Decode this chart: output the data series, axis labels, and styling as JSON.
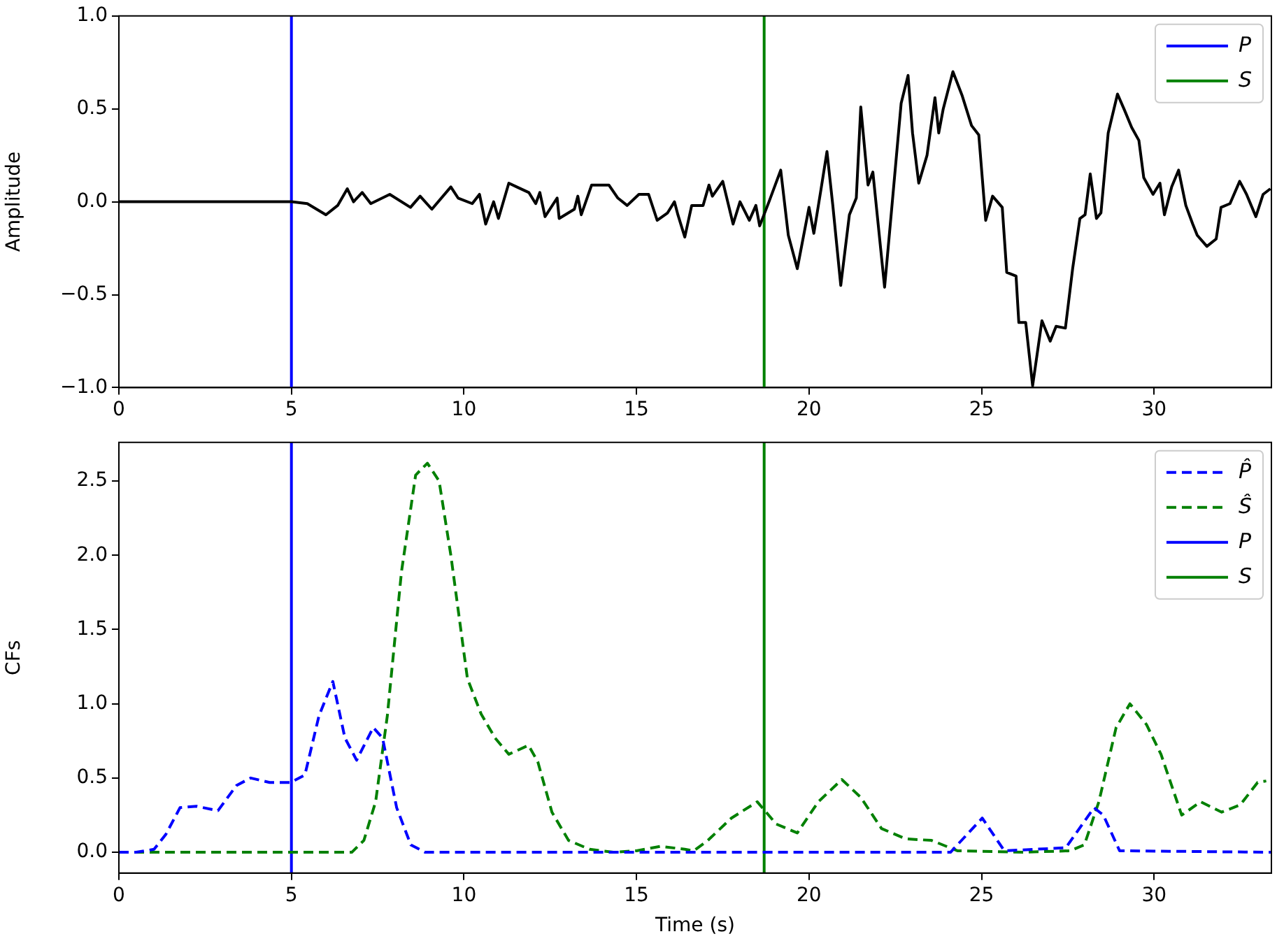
{
  "chart_data": [
    {
      "type": "line",
      "ylabel": "Amplitude",
      "xlim": [
        0,
        33.4
      ],
      "xticks": [
        0,
        5,
        10,
        15,
        20,
        25,
        30
      ],
      "ylim": [
        -1.0,
        1.0
      ],
      "yticks": [
        {
          "value": -1.0,
          "label": "−1.0"
        },
        {
          "value": -0.5,
          "label": "−0.5"
        },
        {
          "value": 0.0,
          "label": "0.0"
        },
        {
          "value": 0.5,
          "label": "0.5"
        },
        {
          "value": 1.0,
          "label": "1.0"
        }
      ],
      "grid": false,
      "legend": "top right",
      "marker": "none",
      "line_style": "solid",
      "series": [
        {
          "color": "#000000",
          "x": [
            0,
            2,
            4,
            5,
            5.46,
            6.0,
            6.34,
            6.62,
            6.8,
            7.05,
            7.3,
            7.85,
            8.45,
            8.73,
            9.07,
            9.62,
            9.83,
            10.24,
            10.45,
            10.63,
            10.86,
            11.0,
            11.3,
            11.53,
            11.88,
            12.08,
            12.2,
            12.35,
            12.7,
            12.76,
            13.2,
            13.3,
            13.4,
            13.7,
            14.2,
            14.46,
            14.73,
            15.07,
            15.35,
            15.6,
            15.9,
            16.1,
            16.2,
            16.4,
            16.6,
            16.93,
            17.1,
            17.2,
            17.5,
            17.8,
            18.0,
            18.27,
            18.46,
            18.57,
            18.84,
            19.18,
            19.4,
            19.66,
            20.0,
            20.14,
            20.35,
            20.52,
            20.69,
            20.92,
            21.17,
            21.37,
            21.5,
            21.71,
            21.85,
            22.19,
            22.39,
            22.67,
            22.87,
            23.0,
            23.18,
            23.42,
            23.65,
            23.76,
            23.89,
            24.17,
            24.44,
            24.71,
            24.92,
            25.12,
            25.32,
            25.6,
            25.73,
            26.0,
            26.08,
            26.28,
            26.48,
            26.75,
            26.99,
            27.16,
            27.43,
            27.64,
            27.85,
            28.0,
            28.15,
            28.33,
            28.46,
            28.67,
            28.94,
            29.15,
            29.35,
            29.56,
            29.7,
            29.97,
            30.17,
            30.3,
            30.51,
            30.71,
            30.92,
            31.12,
            31.25,
            31.53,
            31.8,
            31.94,
            32.2,
            32.48,
            32.68,
            32.95,
            33.16,
            33.37
          ],
          "name": null,
          "values": [
            0,
            0,
            0,
            0,
            -0.01,
            -0.07,
            -0.02,
            0.07,
            0.0,
            0.05,
            -0.01,
            0.04,
            -0.03,
            0.03,
            -0.04,
            0.08,
            0.02,
            -0.01,
            0.04,
            -0.12,
            0.0,
            -0.09,
            0.1,
            0.08,
            0.05,
            -0.01,
            0.05,
            -0.08,
            0.02,
            -0.09,
            -0.04,
            0.03,
            -0.07,
            0.09,
            0.09,
            0.02,
            -0.02,
            0.04,
            0.04,
            -0.1,
            -0.06,
            0.0,
            -0.07,
            -0.19,
            -0.02,
            -0.02,
            0.09,
            0.03,
            0.11,
            -0.12,
            0.0,
            -0.1,
            -0.02,
            -0.13,
            0.0,
            0.17,
            -0.18,
            -0.36,
            -0.03,
            -0.17,
            0.07,
            0.27,
            -0.02,
            -0.45,
            -0.07,
            0.02,
            0.51,
            0.09,
            0.16,
            -0.46,
            -0.05,
            0.53,
            0.68,
            0.37,
            0.1,
            0.25,
            0.56,
            0.37,
            0.5,
            0.7,
            0.57,
            0.41,
            0.36,
            -0.1,
            0.03,
            -0.03,
            -0.38,
            -0.4,
            -0.65,
            -0.65,
            -0.99,
            -0.64,
            -0.75,
            -0.67,
            -0.68,
            -0.36,
            -0.09,
            -0.07,
            0.15,
            -0.09,
            -0.06,
            0.37,
            0.58,
            0.49,
            0.4,
            0.33,
            0.13,
            0.04,
            0.1,
            -0.07,
            0.08,
            0.17,
            -0.02,
            -0.12,
            -0.18,
            -0.24,
            -0.2,
            -0.03,
            -0.01,
            0.11,
            0.04,
            -0.08,
            0.04,
            0.07
          ]
        },
        {
          "name": "P",
          "color": "#0000ff",
          "x": [
            5.0,
            5.0
          ],
          "values": [
            -1.0,
            1.0
          ]
        },
        {
          "name": "S",
          "color": "#008000",
          "x": [
            18.7,
            18.7
          ],
          "values": [
            -1.0,
            1.0
          ]
        }
      ]
    },
    {
      "type": "line",
      "xlabel": "Time (s)",
      "ylabel": "CFs",
      "xlim": [
        0,
        33.4
      ],
      "xticks": [
        0,
        5,
        10,
        15,
        20,
        25,
        30
      ],
      "ylim": [
        -0.14,
        2.76
      ],
      "yticks": [
        {
          "value": 0.0,
          "label": "0.0"
        },
        0.5,
        {
          "value": 1.0,
          "label": "1.0"
        },
        1.5,
        {
          "value": 2.0,
          "label": "2.0"
        },
        2.5
      ],
      "grid": false,
      "legend": "top right",
      "marker": "none",
      "line_style": "dashed",
      "series": [
        {
          "name": "P̂",
          "color": "#0000ff",
          "x": [
            0,
            0.5,
            1.02,
            1.36,
            1.77,
            2.25,
            2.87,
            3.41,
            3.82,
            4.37,
            4.98,
            5.39,
            5.8,
            6.2,
            6.55,
            6.89,
            7.37,
            7.64,
            8.05,
            8.46,
            8.87,
            12,
            16,
            20,
            24.1,
            25.02,
            25.66,
            27.44,
            28.26,
            28.53,
            29.0,
            33.4
          ],
          "values": [
            0,
            0,
            0.02,
            0.12,
            0.3,
            0.31,
            0.28,
            0.45,
            0.5,
            0.47,
            0.47,
            0.52,
            0.92,
            1.15,
            0.77,
            0.62,
            0.84,
            0.77,
            0.3,
            0.05,
            0,
            0,
            0,
            0,
            0,
            0.23,
            0.01,
            0.03,
            0.3,
            0.25,
            0.01,
            0
          ]
        },
        {
          "name": "Ŝ",
          "color": "#008000",
          "x": [
            0,
            3,
            6.75,
            7.1,
            7.44,
            7.78,
            8.19,
            8.6,
            8.94,
            9.28,
            9.62,
            10.1,
            10.5,
            10.9,
            11.3,
            11.87,
            12.14,
            12.55,
            13.03,
            13.64,
            14.33,
            15.0,
            15.7,
            16.4,
            16.66,
            17.07,
            17.75,
            18.5,
            19.05,
            19.66,
            20.27,
            20.95,
            21.5,
            22.1,
            22.8,
            23.55,
            24.3,
            26.2,
            27.57,
            27.98,
            28.4,
            28.9,
            29.3,
            29.78,
            30.2,
            30.8,
            31.35,
            31.96,
            32.5,
            33.0,
            33.25
          ],
          "values": [
            0,
            0,
            0,
            0.08,
            0.34,
            0.92,
            1.89,
            2.54,
            2.62,
            2.5,
            2.0,
            1.17,
            0.93,
            0.77,
            0.66,
            0.72,
            0.61,
            0.27,
            0.08,
            0.02,
            0,
            0.01,
            0.04,
            0.02,
            0.01,
            0.08,
            0.23,
            0.34,
            0.19,
            0.13,
            0.34,
            0.49,
            0.37,
            0.16,
            0.09,
            0.08,
            0.01,
            0,
            0.01,
            0.05,
            0.34,
            0.84,
            1.0,
            0.86,
            0.66,
            0.25,
            0.34,
            0.27,
            0.32,
            0.47,
            0.48
          ]
        },
        {
          "name": "P",
          "color": "#0000ff",
          "line_style": "solid",
          "x": [
            5.0,
            5.0
          ],
          "values": [
            -0.14,
            2.76
          ]
        },
        {
          "name": "S",
          "color": "#008000",
          "line_style": "solid",
          "x": [
            18.7,
            18.7
          ],
          "values": [
            -0.14,
            2.76
          ]
        }
      ]
    }
  ]
}
